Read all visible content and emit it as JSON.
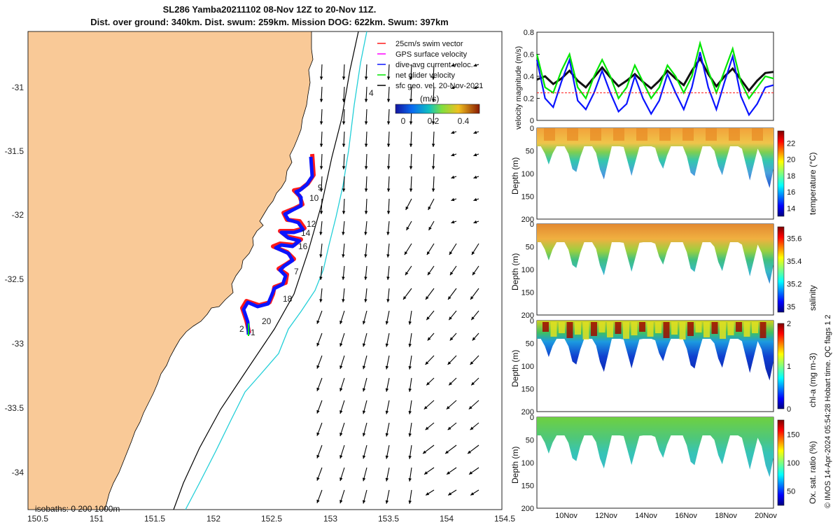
{
  "header": {
    "title_line1": "SL286 Yamba20211102 08-Nov 12Z to 20-Nov 11Z.",
    "title_line2": "Dist. over ground: 340km. Dist. swum: 259km. Mission DOG: 622km. Swum: 397km"
  },
  "colors": {
    "land": "#f9c997",
    "track_red": "#ff1a1a",
    "track_blue": "#0a14ff",
    "isobath_200": "#000000",
    "isobath_1000": "#22cfd8",
    "speed_line": "#00e600",
    "glider_line": "#0a14ff",
    "geo_line": "#111111"
  },
  "map": {
    "lon_ticks": [
      "150.5",
      "151",
      "151.5",
      "152",
      "152.5",
      "153",
      "153.5",
      "154",
      "154.5"
    ],
    "lat_ticks": [
      "-31",
      "-31.5",
      "-32",
      "-32.5",
      "-33",
      "-33.5",
      "-34"
    ],
    "isobath_label": "isobaths: 0   200  1000m",
    "day_labels": [
      "4",
      "9",
      "10",
      "12",
      "14",
      "16",
      "7",
      "18",
      "20",
      "2",
      "1"
    ],
    "legend": [
      {
        "label": "25cm/s swim vector",
        "color": "#ff1a1a"
      },
      {
        "label": "GPS surface velocity",
        "color": "#ff00ff"
      },
      {
        "label": "dive-avg current veloc.",
        "color": "#0a14ff"
      },
      {
        "label": "net glider velocity",
        "color": "#00e600"
      },
      {
        "label": "sfc geo. vel. 20-Nov-2021",
        "color": "#000000"
      }
    ],
    "colorbar_unit": "(m/s)",
    "colorbar_ticks": [
      "0",
      "0.2",
      "0.4"
    ]
  },
  "chart_data": [
    {
      "type": "line",
      "ylabel": "velocity magnitude (m/s)",
      "x_range": [
        "08-Nov-2021 12Z",
        "20-Nov-2021 11Z"
      ],
      "ylim": [
        0,
        0.8
      ],
      "yticks": [
        "0",
        "0.2",
        "0.4",
        "0.6",
        "0.8"
      ],
      "series": [
        {
          "color": "#111111",
          "values": [
            0.37,
            0.4,
            0.33,
            0.38,
            0.45,
            0.36,
            0.3,
            0.39,
            0.48,
            0.39,
            0.31,
            0.36,
            0.42,
            0.35,
            0.29,
            0.36,
            0.45,
            0.38,
            0.32,
            0.45,
            0.56,
            0.42,
            0.31,
            0.4,
            0.47,
            0.37,
            0.27,
            0.36,
            0.43,
            0.44
          ]
        },
        {
          "color": "#0a14ff",
          "values": [
            0.55,
            0.2,
            0.12,
            0.35,
            0.55,
            0.18,
            0.1,
            0.25,
            0.45,
            0.25,
            0.08,
            0.15,
            0.4,
            0.2,
            0.06,
            0.18,
            0.42,
            0.25,
            0.1,
            0.3,
            0.62,
            0.3,
            0.1,
            0.35,
            0.58,
            0.22,
            0.05,
            0.15,
            0.3,
            0.32
          ]
        },
        {
          "color": "#00e600",
          "values": [
            0.6,
            0.3,
            0.25,
            0.45,
            0.6,
            0.3,
            0.2,
            0.4,
            0.55,
            0.4,
            0.2,
            0.3,
            0.5,
            0.35,
            0.2,
            0.3,
            0.5,
            0.4,
            0.25,
            0.4,
            0.7,
            0.45,
            0.25,
            0.45,
            0.65,
            0.35,
            0.2,
            0.3,
            0.4,
            0.38
          ]
        },
        {
          "color": "#ff1a1a",
          "values": [
            0.25,
            0.25,
            0.25,
            0.25,
            0.25,
            0.25,
            0.25,
            0.25,
            0.25,
            0.25,
            0.25,
            0.25,
            0.25,
            0.25,
            0.25,
            0.25,
            0.25,
            0.25,
            0.25,
            0.25,
            0.25,
            0.25,
            0.25,
            0.25,
            0.25,
            0.25,
            0.25,
            0.25,
            0.25,
            0.25
          ]
        }
      ]
    },
    {
      "type": "heatmap",
      "cbar_label": "temperature (°C)",
      "ylabel": "Depth (m)",
      "ylim": [
        200,
        0
      ],
      "yticks": [
        "0",
        "50",
        "100",
        "150",
        "200"
      ],
      "cticks": [
        "14",
        "16",
        "18",
        "20",
        "22"
      ],
      "clim": [
        13,
        23.5
      ]
    },
    {
      "type": "heatmap",
      "cbar_label": "salinity",
      "ylabel": "Depth (m)",
      "ylim": [
        200,
        0
      ],
      "yticks": [
        "0",
        "50",
        "100",
        "150",
        "200"
      ],
      "cticks": [
        "35",
        "35.2",
        "35.4",
        "35.6"
      ],
      "clim": [
        34.95,
        35.7
      ]
    },
    {
      "type": "heatmap",
      "cbar_label": "chl-a (mg m-3)",
      "ylabel": "Depth (m)",
      "ylim": [
        200,
        0
      ],
      "yticks": [
        "0",
        "50",
        "100",
        "150",
        "200"
      ],
      "cticks": [
        "0",
        "1",
        "2"
      ],
      "clim": [
        0,
        2
      ]
    },
    {
      "type": "heatmap",
      "cbar_label": "Ox. sat. ratio (%)",
      "ylabel": "Depth (m)",
      "ylim": [
        200,
        0
      ],
      "yticks": [
        "0",
        "50",
        "100",
        "150",
        "200"
      ],
      "cticks": [
        "50",
        "100",
        "150"
      ],
      "clim": [
        25,
        175
      ],
      "xticks": [
        "10Nov",
        "12Nov",
        "14Nov",
        "16Nov",
        "18Nov",
        "20Nov"
      ]
    }
  ],
  "side_note": "© IMOS 14-Apr-2024 05:54:28 Hobart time. QC flags 1  2"
}
